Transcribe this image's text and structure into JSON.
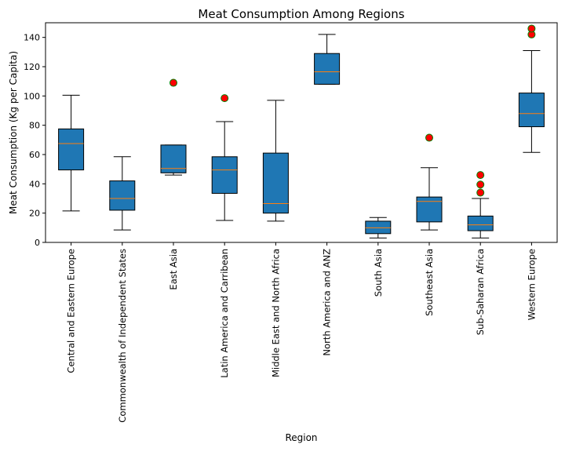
{
  "chart_data": {
    "type": "box",
    "title": "Meat Consumption Among Regions",
    "xlabel": "Region",
    "ylabel": "Meat Consumption (Kg per Capita)",
    "ylim": [
      0,
      150
    ],
    "yticks": [
      0,
      20,
      40,
      60,
      80,
      100,
      120,
      140
    ],
    "grid": false,
    "legend": "none",
    "colors": {
      "box_fill": "#1f77b4",
      "median": "#ff7f0e",
      "outlier_fill": "#ff0000",
      "outlier_edge": "#008000",
      "lines": "#000000"
    },
    "categories": [
      "Central and Eastern Europe",
      "Commonwealth of Independent States",
      "East Asia",
      "Latin America and Carribean",
      "Middle East and North Africa",
      "North America and ANZ",
      "South Asia",
      "Southeast Asia",
      "Sub-Saharan Africa",
      "Western Europe"
    ],
    "boxes": [
      {
        "whislo": 21.5,
        "q1": 49.5,
        "med": 67.5,
        "q3": 77.5,
        "whishi": 100.5,
        "fliers": []
      },
      {
        "whislo": 8.5,
        "q1": 22.0,
        "med": 30.0,
        "q3": 42.0,
        "whishi": 58.5,
        "fliers": []
      },
      {
        "whislo": 46.0,
        "q1": 47.5,
        "med": 50.5,
        "q3": 66.5,
        "whishi": 66.5,
        "fliers": [
          109.0
        ]
      },
      {
        "whislo": 15.0,
        "q1": 33.5,
        "med": 49.5,
        "q3": 58.5,
        "whishi": 82.5,
        "fliers": [
          98.5
        ]
      },
      {
        "whislo": 14.5,
        "q1": 20.0,
        "med": 26.5,
        "q3": 61.0,
        "whishi": 97.0,
        "fliers": []
      },
      {
        "whislo": 108.0,
        "q1": 108.0,
        "med": 116.5,
        "q3": 129.0,
        "whishi": 142.0,
        "fliers": []
      },
      {
        "whislo": 3.0,
        "q1": 6.0,
        "med": 10.0,
        "q3": 14.5,
        "whishi": 17.0,
        "fliers": []
      },
      {
        "whislo": 8.5,
        "q1": 14.0,
        "med": 28.0,
        "q3": 31.0,
        "whishi": 51.0,
        "fliers": [
          71.5
        ]
      },
      {
        "whislo": 3.0,
        "q1": 8.0,
        "med": 12.0,
        "q3": 18.0,
        "whishi": 30.0,
        "fliers": [
          34.0,
          39.5,
          46.0
        ]
      },
      {
        "whislo": 61.5,
        "q1": 79.0,
        "med": 88.0,
        "q3": 102.0,
        "whishi": 131.0,
        "fliers": [
          142.0,
          146.0
        ]
      }
    ]
  }
}
